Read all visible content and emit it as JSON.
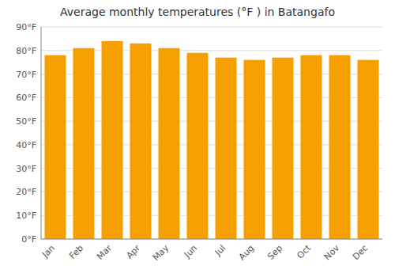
{
  "chart_data": {
    "type": "bar",
    "title": "Average monthly temperatures (°F ) in Batangafo",
    "categories": [
      "Jan",
      "Feb",
      "Mar",
      "Apr",
      "May",
      "Jun",
      "Jul",
      "Aug",
      "Sep",
      "Oct",
      "Nov",
      "Dec"
    ],
    "values": [
      78,
      81,
      84,
      83,
      81,
      79,
      77,
      76,
      77,
      78,
      78,
      76
    ],
    "color": "#F5A000",
    "ylim": [
      0,
      90
    ],
    "yticks": [
      {
        "value": 0,
        "label": "0°F"
      },
      {
        "value": 10,
        "label": "10°F"
      },
      {
        "value": 20,
        "label": "20°F"
      },
      {
        "value": 30,
        "label": "30°F"
      },
      {
        "value": 40,
        "label": "40°F"
      },
      {
        "value": 50,
        "label": "50°F"
      },
      {
        "value": 60,
        "label": "60°F"
      },
      {
        "value": 70,
        "label": "70°F"
      },
      {
        "value": 80,
        "label": "80°F"
      },
      {
        "value": 90,
        "label": "90°F"
      }
    ],
    "grid": true
  }
}
